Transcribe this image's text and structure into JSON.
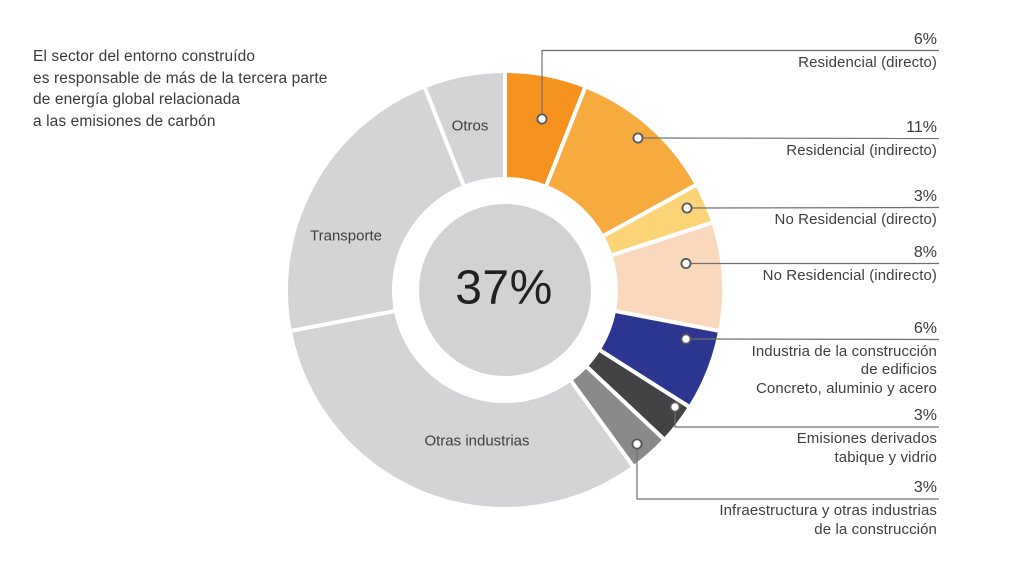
{
  "intro": {
    "lines": [
      "El sector del entorno construído",
      "es responsable de más de la tercera parte",
      "de energía global relacionada",
      "a las emisiones de carbón"
    ]
  },
  "chart_data": {
    "type": "pie",
    "subtype": "donut",
    "center_label": "37%",
    "legend_position": "right-callouts",
    "slices": [
      {
        "label": "Residencial (directo)",
        "value": 6,
        "color": "#F6921E"
      },
      {
        "label": "Residencial (indirecto)",
        "value": 11,
        "color": "#F7AB3F"
      },
      {
        "label": "No Residencial (directo)",
        "value": 3,
        "color": "#FBD475"
      },
      {
        "label": "No Residencial (indirecto)",
        "value": 8,
        "color": "#F9D8BC"
      },
      {
        "label": "Industria de la construcción de edificios Concreto, aluminio y acero",
        "value": 6,
        "color": "#2C3590"
      },
      {
        "label": "Emisiones derivados tabique y vidrio",
        "value": 3,
        "color": "#434345"
      },
      {
        "label": "Infraestructura y otras industrias de la construcción",
        "value": 3,
        "color": "#8A8A8D"
      },
      {
        "label": "Otras industrias",
        "value": 32,
        "color": "#D4D3D5"
      },
      {
        "label": "Transporte",
        "value": 22,
        "color": "#D4D3D5"
      },
      {
        "label": "Otros",
        "value": 6,
        "color": "#D4D3D5"
      }
    ],
    "ring_labels": [
      "Otros",
      "Transporte",
      "Otras industrias"
    ]
  },
  "callouts": [
    {
      "pct": "6%",
      "lines": [
        "Residencial (directo)"
      ]
    },
    {
      "pct": "11%",
      "lines": [
        "Residencial (indirecto)"
      ]
    },
    {
      "pct": "3%",
      "lines": [
        "No Residencial (directo)"
      ]
    },
    {
      "pct": "8%",
      "lines": [
        "No Residencial (indirecto)"
      ]
    },
    {
      "pct": "6%",
      "lines": [
        "Industria de la construcción",
        "de edificios",
        "Concreto, aluminio y acero"
      ]
    },
    {
      "pct": "3%",
      "lines": [
        "Emisiones derivados",
        "tabique y vidrio"
      ]
    },
    {
      "pct": "3%",
      "lines": [
        "Infraestructura y otras industrias",
        "de la construcción"
      ]
    }
  ],
  "style": {
    "callout_line_color": "#707074",
    "slice_gap_color": "#ffffff",
    "inner_circle_color": "#D2D2D3",
    "text_color": "#3f3f3f"
  }
}
